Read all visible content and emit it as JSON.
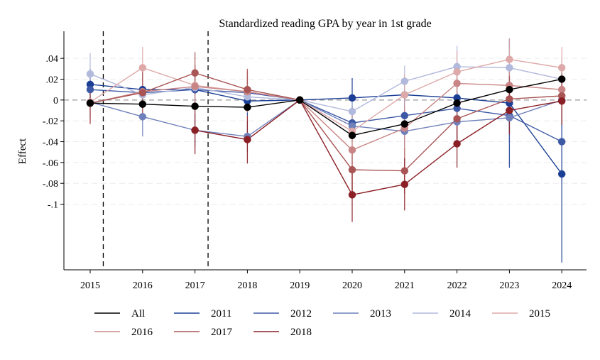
{
  "chart_data": {
    "type": "line",
    "title": "Standardized reading GPA by year in 1st grade",
    "xlabel": "",
    "ylabel": "Effect",
    "x": [
      2015,
      2016,
      2017,
      2018,
      2019,
      2020,
      2021,
      2022,
      2023,
      2024
    ],
    "x_tick_labels": [
      "2015",
      "2016",
      "2017",
      "2018",
      "2019",
      "2020",
      "2021",
      "2022",
      "2023",
      "2024"
    ],
    "y_ticks": [
      0.04,
      0.02,
      0,
      -0.02,
      -0.04,
      -0.06,
      -0.08,
      -0.1
    ],
    "y_tick_labels": [
      ".04",
      ".02",
      "0",
      "-.02",
      "-.04",
      "-.06",
      "-.08",
      "-.1"
    ],
    "ylim": [
      -0.163,
      0.066
    ],
    "reference_line_y": 0,
    "vertical_dashed_lines_x": [
      2015.25,
      2017.25
    ],
    "grid": "horizontal dashed",
    "legend_position": "bottom",
    "series": [
      {
        "name": "All",
        "color": "#000000",
        "values": [
          -0.003,
          -0.004,
          -0.006,
          -0.007,
          0.0,
          -0.034,
          -0.023,
          -0.003,
          0.01,
          0.02
        ],
        "ci_low": [
          null,
          null,
          null,
          null,
          null,
          null,
          null,
          null,
          null,
          null
        ],
        "ci_high": [
          null,
          null,
          null,
          null,
          null,
          null,
          null,
          null,
          null,
          null
        ]
      },
      {
        "name": "2011",
        "color": "#1b3f95",
        "values": [
          0.015,
          0.01,
          0.01,
          -0.001,
          0.0,
          0.002,
          0.005,
          0.002,
          -0.003,
          -0.071
        ],
        "ci_low": [
          0.0,
          -0.005,
          -0.005,
          -0.015,
          0.0,
          -0.017,
          -0.01,
          -0.014,
          -0.065,
          -0.156
        ],
        "ci_high": [
          0.03,
          0.024,
          0.025,
          0.013,
          0.0,
          0.021,
          0.02,
          0.018,
          0.059,
          0.014
        ]
      },
      {
        "name": "2012",
        "color": "#3d59a6",
        "values": [
          0.01,
          0.007,
          0.01,
          0.007,
          0.0,
          -0.022,
          -0.015,
          -0.008,
          -0.015,
          -0.04
        ],
        "ci_low": [
          -0.005,
          -0.008,
          -0.005,
          -0.008,
          0.0,
          -0.038,
          -0.03,
          -0.024,
          -0.04,
          -0.08
        ],
        "ci_high": [
          0.025,
          0.022,
          0.025,
          0.022,
          0.0,
          -0.006,
          0.0,
          0.008,
          0.01,
          0.0
        ]
      },
      {
        "name": "2013",
        "color": "#6f80ba",
        "values": [
          -0.002,
          -0.016,
          -0.029,
          -0.035,
          0.0,
          -0.025,
          -0.03,
          -0.021,
          -0.017,
          0.0
        ],
        "ci_low": [
          -0.017,
          -0.035,
          -0.045,
          -0.05,
          0.0,
          -0.04,
          -0.045,
          -0.037,
          -0.033,
          -0.016
        ],
        "ci_high": [
          0.013,
          0.003,
          -0.013,
          -0.02,
          0.0,
          -0.01,
          -0.015,
          -0.005,
          -0.001,
          0.016
        ]
      },
      {
        "name": "2014",
        "color": "#b1b9dc",
        "values": [
          0.025,
          0.005,
          0.012,
          0.003,
          0.0,
          -0.011,
          0.018,
          0.032,
          0.031,
          0.02
        ],
        "ci_low": [
          0.005,
          -0.01,
          -0.003,
          -0.012,
          0.0,
          -0.026,
          0.003,
          0.012,
          0.011,
          0.0
        ],
        "ci_high": [
          0.045,
          0.02,
          0.027,
          0.018,
          0.0,
          0.004,
          0.033,
          0.052,
          0.051,
          0.04
        ]
      },
      {
        "name": "2015",
        "color": "#dea9a9",
        "values": [
          -0.002,
          0.031,
          0.014,
          0.008,
          0.0,
          -0.03,
          0.005,
          0.027,
          0.039,
          0.031
        ],
        "ci_low": [
          -0.022,
          0.011,
          -0.006,
          -0.012,
          0.0,
          -0.048,
          -0.015,
          0.007,
          0.019,
          0.011
        ],
        "ci_high": [
          0.018,
          0.051,
          0.034,
          0.028,
          0.0,
          -0.012,
          0.025,
          0.047,
          0.059,
          0.051
        ]
      },
      {
        "name": "2016",
        "color": "#c98585",
        "values": [
          -0.003,
          0.008,
          0.013,
          0.008,
          0.0,
          -0.048,
          -0.027,
          0.016,
          0.014,
          0.01
        ],
        "ci_low": [
          -0.023,
          -0.012,
          -0.007,
          -0.012,
          0.0,
          -0.068,
          -0.047,
          -0.004,
          -0.006,
          -0.01
        ],
        "ci_high": [
          0.017,
          0.028,
          0.033,
          0.028,
          0.0,
          -0.028,
          -0.007,
          0.036,
          0.034,
          0.03
        ]
      },
      {
        "name": "2017",
        "color": "#a95555",
        "values": [
          -0.003,
          0.007,
          0.026,
          0.01,
          0.0,
          -0.067,
          -0.068,
          -0.018,
          0.001,
          0.004
        ],
        "ci_low": [
          -0.023,
          -0.013,
          0.006,
          -0.01,
          0.0,
          -0.089,
          -0.09,
          -0.04,
          -0.021,
          -0.018
        ],
        "ci_high": [
          0.017,
          0.027,
          0.046,
          0.03,
          0.0,
          -0.045,
          -0.046,
          0.004,
          0.023,
          0.026
        ]
      },
      {
        "name": "2018",
        "color": "#8b1f26",
        "values": [
          null,
          null,
          -0.029,
          -0.038,
          0.0,
          -0.091,
          -0.081,
          -0.042,
          -0.01,
          -0.001
        ],
        "ci_low": [
          null,
          null,
          -0.052,
          -0.061,
          0.0,
          -0.117,
          -0.106,
          -0.065,
          -0.033,
          -0.024
        ],
        "ci_high": [
          null,
          null,
          -0.006,
          -0.015,
          0.0,
          -0.065,
          -0.056,
          -0.019,
          0.013,
          0.022
        ]
      }
    ]
  }
}
